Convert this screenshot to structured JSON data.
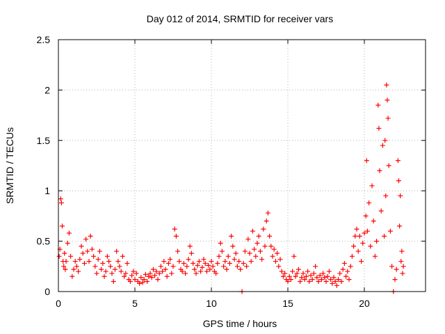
{
  "chart_data": {
    "type": "scatter",
    "title": "Day 012 of 2014, SRMTID for receiver vars",
    "xlabel": "GPS time / hours",
    "ylabel": "SRMTID / TECUs",
    "xlim": [
      0,
      24
    ],
    "ylim": [
      0,
      2.5
    ],
    "x_ticks": [
      "0",
      "5",
      "10",
      "15",
      "20"
    ],
    "y_ticks": [
      "0",
      "0.5",
      "1",
      "1.5",
      "2",
      "2.5"
    ],
    "grid": true,
    "marker": "plus",
    "color": "#ff0000",
    "series": [
      {
        "name": "SRMTID",
        "points": [
          [
            0.05,
            0.35
          ],
          [
            0.1,
            0.42
          ],
          [
            0.15,
            0.92
          ],
          [
            0.2,
            0.88
          ],
          [
            0.25,
            0.65
          ],
          [
            0.3,
            0.3
          ],
          [
            0.35,
            0.25
          ],
          [
            0.4,
            0.38
          ],
          [
            0.45,
            0.22
          ],
          [
            0.5,
            0.3
          ],
          [
            0.6,
            0.48
          ],
          [
            0.7,
            0.58
          ],
          [
            0.8,
            0.35
          ],
          [
            0.9,
            0.15
          ],
          [
            1.0,
            0.22
          ],
          [
            1.1,
            0.3
          ],
          [
            1.2,
            0.25
          ],
          [
            1.3,
            0.2
          ],
          [
            1.4,
            0.32
          ],
          [
            1.5,
            0.45
          ],
          [
            1.6,
            0.38
          ],
          [
            1.7,
            0.28
          ],
          [
            1.8,
            0.52
          ],
          [
            1.9,
            0.4
          ],
          [
            2.0,
            0.3
          ],
          [
            2.1,
            0.55
          ],
          [
            2.2,
            0.42
          ],
          [
            2.3,
            0.35
          ],
          [
            2.4,
            0.25
          ],
          [
            2.5,
            0.18
          ],
          [
            2.6,
            0.32
          ],
          [
            2.7,
            0.4
          ],
          [
            2.8,
            0.22
          ],
          [
            2.9,
            0.28
          ],
          [
            3.0,
            0.15
          ],
          [
            3.1,
            0.2
          ],
          [
            3.2,
            0.35
          ],
          [
            3.3,
            0.3
          ],
          [
            3.4,
            0.25
          ],
          [
            3.5,
            0.18
          ],
          [
            3.6,
            0.1
          ],
          [
            3.7,
            0.22
          ],
          [
            3.8,
            0.4
          ],
          [
            3.9,
            0.3
          ],
          [
            4.0,
            0.25
          ],
          [
            4.1,
            0.2
          ],
          [
            4.2,
            0.35
          ],
          [
            4.3,
            0.15
          ],
          [
            4.4,
            0.18
          ],
          [
            4.5,
            0.28
          ],
          [
            4.6,
            0.12
          ],
          [
            4.7,
            0.1
          ],
          [
            4.8,
            0.16
          ],
          [
            4.9,
            0.2
          ],
          [
            5.0,
            0.12
          ],
          [
            5.1,
            0.18
          ],
          [
            5.2,
            0.1
          ],
          [
            5.3,
            0.08
          ],
          [
            5.4,
            0.14
          ],
          [
            5.5,
            0.09
          ],
          [
            5.6,
            0.12
          ],
          [
            5.7,
            0.17
          ],
          [
            5.8,
            0.1
          ],
          [
            5.9,
            0.15
          ],
          [
            6.0,
            0.18
          ],
          [
            6.1,
            0.14
          ],
          [
            6.2,
            0.22
          ],
          [
            6.3,
            0.16
          ],
          [
            6.4,
            0.2
          ],
          [
            6.5,
            0.12
          ],
          [
            6.6,
            0.18
          ],
          [
            6.7,
            0.25
          ],
          [
            6.8,
            0.2
          ],
          [
            6.9,
            0.3
          ],
          [
            7.0,
            0.22
          ],
          [
            7.1,
            0.15
          ],
          [
            7.2,
            0.28
          ],
          [
            7.3,
            0.32
          ],
          [
            7.4,
            0.18
          ],
          [
            7.5,
            0.25
          ],
          [
            7.6,
            0.62
          ],
          [
            7.7,
            0.55
          ],
          [
            7.8,
            0.4
          ],
          [
            7.9,
            0.3
          ],
          [
            8.0,
            0.22
          ],
          [
            8.1,
            0.2
          ],
          [
            8.2,
            0.28
          ],
          [
            8.3,
            0.18
          ],
          [
            8.4,
            0.25
          ],
          [
            8.5,
            0.32
          ],
          [
            8.6,
            0.45
          ],
          [
            8.7,
            0.38
          ],
          [
            8.8,
            0.28
          ],
          [
            8.9,
            0.22
          ],
          [
            9.0,
            0.18
          ],
          [
            9.1,
            0.26
          ],
          [
            9.2,
            0.3
          ],
          [
            9.3,
            0.2
          ],
          [
            9.4,
            0.24
          ],
          [
            9.5,
            0.32
          ],
          [
            9.6,
            0.28
          ],
          [
            9.7,
            0.2
          ],
          [
            9.8,
            0.26
          ],
          [
            9.9,
            0.22
          ],
          [
            10.0,
            0.3
          ],
          [
            10.1,
            0.25
          ],
          [
            10.2,
            0.2
          ],
          [
            10.3,
            0.18
          ],
          [
            10.4,
            0.28
          ],
          [
            10.5,
            0.35
          ],
          [
            10.6,
            0.48
          ],
          [
            10.7,
            0.4
          ],
          [
            10.8,
            0.25
          ],
          [
            10.9,
            0.3
          ],
          [
            11.0,
            0.22
          ],
          [
            11.1,
            0.35
          ],
          [
            11.2,
            0.28
          ],
          [
            11.3,
            0.55
          ],
          [
            11.4,
            0.45
          ],
          [
            11.5,
            0.32
          ],
          [
            11.6,
            0.38
          ],
          [
            11.7,
            0.25
          ],
          [
            11.8,
            0.3
          ],
          [
            11.9,
            0.22
          ],
          [
            12.0,
            0.0
          ],
          [
            12.1,
            0.28
          ],
          [
            12.2,
            0.4
          ],
          [
            12.3,
            0.25
          ],
          [
            12.4,
            0.52
          ],
          [
            12.5,
            0.38
          ],
          [
            12.6,
            0.3
          ],
          [
            12.7,
            0.6
          ],
          [
            12.8,
            0.42
          ],
          [
            12.9,
            0.35
          ],
          [
            13.0,
            0.48
          ],
          [
            13.1,
            0.55
          ],
          [
            13.2,
            0.4
          ],
          [
            13.3,
            0.32
          ],
          [
            13.4,
            0.62
          ],
          [
            13.5,
            0.45
          ],
          [
            13.6,
            0.7
          ],
          [
            13.7,
            0.78
          ],
          [
            13.8,
            0.55
          ],
          [
            13.9,
            0.45
          ],
          [
            14.0,
            0.35
          ],
          [
            14.1,
            0.42
          ],
          [
            14.2,
            0.3
          ],
          [
            14.3,
            0.38
          ],
          [
            14.4,
            0.25
          ],
          [
            14.5,
            0.32
          ],
          [
            14.6,
            0.2
          ],
          [
            14.7,
            0.15
          ],
          [
            14.8,
            0.18
          ],
          [
            14.9,
            0.12
          ],
          [
            15.0,
            0.1
          ],
          [
            15.1,
            0.15
          ],
          [
            15.2,
            0.12
          ],
          [
            15.3,
            0.2
          ],
          [
            15.4,
            0.35
          ],
          [
            15.5,
            0.15
          ],
          [
            15.6,
            0.18
          ],
          [
            15.7,
            0.22
          ],
          [
            15.8,
            0.1
          ],
          [
            15.9,
            0.14
          ],
          [
            16.0,
            0.18
          ],
          [
            16.1,
            0.12
          ],
          [
            16.2,
            0.15
          ],
          [
            16.3,
            0.2
          ],
          [
            16.4,
            0.1
          ],
          [
            16.5,
            0.16
          ],
          [
            16.6,
            0.12
          ],
          [
            16.7,
            0.18
          ],
          [
            16.8,
            0.25
          ],
          [
            16.9,
            0.14
          ],
          [
            17.0,
            0.1
          ],
          [
            17.1,
            0.16
          ],
          [
            17.2,
            0.12
          ],
          [
            17.3,
            0.18
          ],
          [
            17.4,
            0.14
          ],
          [
            17.5,
            0.1
          ],
          [
            17.6,
            0.15
          ],
          [
            17.7,
            0.2
          ],
          [
            17.8,
            0.12
          ],
          [
            17.9,
            0.08
          ],
          [
            18.0,
            0.14
          ],
          [
            18.1,
            0.1
          ],
          [
            18.2,
            0.06
          ],
          [
            18.3,
            0.12
          ],
          [
            18.4,
            0.18
          ],
          [
            18.5,
            0.1
          ],
          [
            18.6,
            0.22
          ],
          [
            18.7,
            0.28
          ],
          [
            18.8,
            0.15
          ],
          [
            18.9,
            0.2
          ],
          [
            19.0,
            0.12
          ],
          [
            19.1,
            0.25
          ],
          [
            19.2,
            0.35
          ],
          [
            19.3,
            0.45
          ],
          [
            19.4,
            0.55
          ],
          [
            19.5,
            0.62
          ],
          [
            19.6,
            0.4
          ],
          [
            19.7,
            0.55
          ],
          [
            19.8,
            0.3
          ],
          [
            19.9,
            0.48
          ],
          [
            20.0,
            0.58
          ],
          [
            20.1,
            0.75
          ],
          [
            20.15,
            1.3
          ],
          [
            20.2,
            0.6
          ],
          [
            20.3,
            0.88
          ],
          [
            20.4,
            0.45
          ],
          [
            20.5,
            1.05
          ],
          [
            20.6,
            0.7
          ],
          [
            20.7,
            0.35
          ],
          [
            20.8,
            0.5
          ],
          [
            20.9,
            1.85
          ],
          [
            20.95,
            1.62
          ],
          [
            21.0,
            1.2
          ],
          [
            21.1,
            0.8
          ],
          [
            21.2,
            1.45
          ],
          [
            21.3,
            0.55
          ],
          [
            21.35,
            1.5
          ],
          [
            21.4,
            0.95
          ],
          [
            21.45,
            2.05
          ],
          [
            21.5,
            1.9
          ],
          [
            21.55,
            1.72
          ],
          [
            21.6,
            1.25
          ],
          [
            21.7,
            0.6
          ],
          [
            21.8,
            0.25
          ],
          [
            21.9,
            0.0
          ],
          [
            22.0,
            0.12
          ],
          [
            22.1,
            0.22
          ],
          [
            22.2,
            1.3
          ],
          [
            22.25,
            1.1
          ],
          [
            22.3,
            0.65
          ],
          [
            22.35,
            0.95
          ],
          [
            22.4,
            0.3
          ],
          [
            22.45,
            0.4
          ],
          [
            22.5,
            0.18
          ],
          [
            22.55,
            0.25
          ]
        ]
      }
    ]
  }
}
